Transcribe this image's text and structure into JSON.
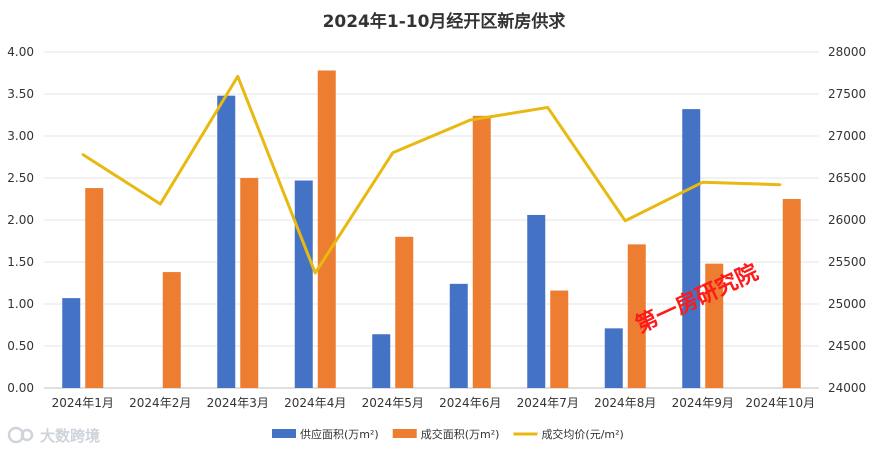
{
  "chart_data": {
    "type": "bar",
    "title": "2024年1-10月经开区新房供求",
    "categories": [
      "2024年1月",
      "2024年2月",
      "2024年3月",
      "2024年4月",
      "2024年5月",
      "2024年6月",
      "2024年7月",
      "2024年8月",
      "2024年9月",
      "2024年10月"
    ],
    "y_left": {
      "min": 0,
      "max": 4,
      "step": 0.5,
      "ticks": [
        "0.00",
        "0.50",
        "1.00",
        "1.50",
        "2.00",
        "2.50",
        "3.00",
        "3.50",
        "4.00"
      ]
    },
    "y_right": {
      "min": 24000,
      "max": 28000,
      "step": 500,
      "ticks": [
        "24000",
        "24500",
        "25000",
        "25500",
        "26000",
        "26500",
        "27000",
        "27500",
        "28000"
      ]
    },
    "series": [
      {
        "name": "供应面积(万m²)",
        "type": "bar",
        "axis": "left",
        "color": "#4472c4",
        "values": [
          1.07,
          0,
          3.48,
          2.47,
          0.64,
          1.24,
          2.06,
          0.71,
          3.32,
          0
        ]
      },
      {
        "name": "成交面积(万m²)",
        "type": "bar",
        "axis": "left",
        "color": "#ed7d31",
        "values": [
          2.38,
          1.38,
          2.5,
          3.78,
          1.8,
          3.24,
          1.16,
          1.71,
          1.48,
          2.25
        ]
      },
      {
        "name": "成交均价(元/m²)",
        "type": "line",
        "axis": "right",
        "color": "#e8b910",
        "values": [
          26780,
          26190,
          27710,
          25370,
          26800,
          27190,
          27340,
          25990,
          26450,
          26420
        ]
      }
    ],
    "legend_position": "bottom",
    "grid": true
  },
  "watermark": {
    "text": "第一房研究院",
    "color": "#ff1a1a"
  },
  "brand": {
    "logo_text": "大数跨境"
  }
}
